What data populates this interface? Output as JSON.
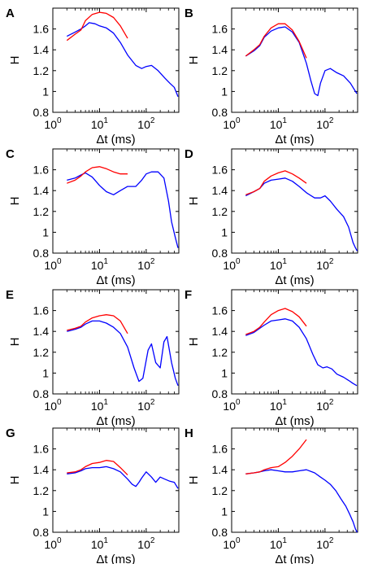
{
  "figure": {
    "panel_count": 8
  },
  "chart_data": [
    {
      "type": "line",
      "panel_label": "A",
      "xlabel": "Δt (ms)",
      "ylabel": "H",
      "xscale": "log",
      "xlim": [
        1,
        500
      ],
      "ylim": [
        0.8,
        1.8
      ],
      "xticks": [
        1,
        10,
        100
      ],
      "xtick_labels": [
        "10^0",
        "10^1",
        "10^2"
      ],
      "yticks": [
        0.8,
        1,
        1.2,
        1.4,
        1.6
      ],
      "ytick_labels": [
        "0.8",
        "1",
        "1.2",
        "1.4",
        "1.6"
      ],
      "grid": false,
      "series": [
        {
          "color": "#ff0000",
          "x": [
            2,
            3,
            4,
            5,
            7,
            10,
            14,
            20,
            28,
            40
          ],
          "y": [
            1.49,
            1.55,
            1.59,
            1.68,
            1.74,
            1.76,
            1.75,
            1.71,
            1.63,
            1.51
          ]
        },
        {
          "color": "#0000ff",
          "x": [
            2,
            3,
            4,
            5,
            6,
            8,
            10,
            14,
            20,
            28,
            40,
            60,
            80,
            100,
            130,
            180,
            250,
            320,
            400,
            480
          ],
          "y": [
            1.53,
            1.57,
            1.6,
            1.63,
            1.66,
            1.65,
            1.63,
            1.61,
            1.56,
            1.47,
            1.35,
            1.25,
            1.22,
            1.24,
            1.25,
            1.2,
            1.13,
            1.08,
            1.04,
            0.95
          ]
        }
      ]
    },
    {
      "type": "line",
      "panel_label": "B",
      "xlabel": "Δt (ms)",
      "ylabel": "H",
      "xscale": "log",
      "xlim": [
        1,
        500
      ],
      "ylim": [
        0.8,
        1.8
      ],
      "xticks": [
        1,
        10,
        100
      ],
      "xtick_labels": [
        "10^0",
        "10^1",
        "10^2"
      ],
      "yticks": [
        0.8,
        1,
        1.2,
        1.4,
        1.6
      ],
      "ytick_labels": [
        "0.8",
        "1",
        "1.2",
        "1.4",
        "1.6"
      ],
      "grid": false,
      "series": [
        {
          "color": "#ff0000",
          "x": [
            2,
            3,
            4,
            5,
            7,
            10,
            14,
            20,
            28,
            40
          ],
          "y": [
            1.34,
            1.4,
            1.45,
            1.53,
            1.61,
            1.65,
            1.65,
            1.59,
            1.48,
            1.32
          ]
        },
        {
          "color": "#0000ff",
          "x": [
            2,
            3,
            4,
            5,
            7,
            10,
            14,
            20,
            28,
            40,
            50,
            60,
            70,
            80,
            100,
            130,
            180,
            250,
            350,
            480
          ],
          "y": [
            1.34,
            1.39,
            1.44,
            1.52,
            1.58,
            1.61,
            1.62,
            1.57,
            1.47,
            1.27,
            1.1,
            0.98,
            0.96,
            1.08,
            1.2,
            1.22,
            1.18,
            1.15,
            1.08,
            0.98
          ]
        }
      ]
    },
    {
      "type": "line",
      "panel_label": "C",
      "xlabel": "Δt (ms)",
      "ylabel": "H",
      "xscale": "log",
      "xlim": [
        1,
        500
      ],
      "ylim": [
        0.8,
        1.8
      ],
      "xticks": [
        1,
        10,
        100
      ],
      "xtick_labels": [
        "10^0",
        "10^1",
        "10^2"
      ],
      "yticks": [
        0.8,
        1,
        1.2,
        1.4,
        1.6
      ],
      "ytick_labels": [
        "0.8",
        "1",
        "1.2",
        "1.4",
        "1.6"
      ],
      "grid": false,
      "series": [
        {
          "color": "#ff0000",
          "x": [
            2,
            3,
            4,
            5,
            7,
            10,
            14,
            20,
            28,
            40
          ],
          "y": [
            1.47,
            1.5,
            1.54,
            1.58,
            1.62,
            1.63,
            1.61,
            1.58,
            1.56,
            1.56
          ]
        },
        {
          "color": "#0000ff",
          "x": [
            2,
            3,
            4,
            5,
            7,
            10,
            14,
            20,
            28,
            40,
            60,
            80,
            100,
            130,
            180,
            240,
            300,
            350,
            420,
            480
          ],
          "y": [
            1.5,
            1.52,
            1.55,
            1.57,
            1.53,
            1.45,
            1.39,
            1.36,
            1.4,
            1.44,
            1.44,
            1.5,
            1.56,
            1.58,
            1.58,
            1.52,
            1.3,
            1.1,
            0.95,
            0.85
          ]
        }
      ]
    },
    {
      "type": "line",
      "panel_label": "D",
      "xlabel": "Δt (ms)",
      "ylabel": "H",
      "xscale": "log",
      "xlim": [
        1,
        500
      ],
      "ylim": [
        0.8,
        1.8
      ],
      "xticks": [
        1,
        10,
        100
      ],
      "xtick_labels": [
        "10^0",
        "10^1",
        "10^2"
      ],
      "yticks": [
        0.8,
        1,
        1.2,
        1.4,
        1.6
      ],
      "ytick_labels": [
        "0.8",
        "1",
        "1.2",
        "1.4",
        "1.6"
      ],
      "grid": false,
      "series": [
        {
          "color": "#ff0000",
          "x": [
            2,
            3,
            4,
            5,
            7,
            10,
            14,
            20,
            28,
            40
          ],
          "y": [
            1.36,
            1.39,
            1.42,
            1.49,
            1.54,
            1.57,
            1.59,
            1.56,
            1.52,
            1.47
          ]
        },
        {
          "color": "#0000ff",
          "x": [
            2,
            3,
            4,
            5,
            7,
            10,
            14,
            20,
            28,
            40,
            60,
            80,
            100,
            130,
            180,
            250,
            320,
            400,
            450,
            490
          ],
          "y": [
            1.35,
            1.39,
            1.42,
            1.47,
            1.5,
            1.51,
            1.52,
            1.49,
            1.44,
            1.38,
            1.33,
            1.33,
            1.35,
            1.3,
            1.22,
            1.15,
            1.05,
            0.9,
            0.85,
            0.82
          ]
        }
      ]
    },
    {
      "type": "line",
      "panel_label": "E",
      "xlabel": "Δt (ms)",
      "ylabel": "H",
      "xscale": "log",
      "xlim": [
        1,
        500
      ],
      "ylim": [
        0.8,
        1.8
      ],
      "xticks": [
        1,
        10,
        100
      ],
      "xtick_labels": [
        "10^0",
        "10^1",
        "10^2"
      ],
      "yticks": [
        0.8,
        1,
        1.2,
        1.4,
        1.6
      ],
      "ytick_labels": [
        "0.8",
        "1",
        "1.2",
        "1.4",
        "1.6"
      ],
      "grid": false,
      "series": [
        {
          "color": "#ff0000",
          "x": [
            2,
            3,
            4,
            5,
            7,
            10,
            14,
            20,
            28,
            40
          ],
          "y": [
            1.41,
            1.43,
            1.45,
            1.49,
            1.53,
            1.55,
            1.56,
            1.55,
            1.5,
            1.38
          ]
        },
        {
          "color": "#0000ff",
          "x": [
            2,
            3,
            4,
            5,
            7,
            10,
            14,
            20,
            28,
            40,
            55,
            70,
            85,
            110,
            130,
            160,
            200,
            240,
            280,
            350,
            420,
            480
          ],
          "y": [
            1.4,
            1.42,
            1.44,
            1.47,
            1.5,
            1.5,
            1.48,
            1.44,
            1.38,
            1.25,
            1.05,
            0.92,
            0.95,
            1.22,
            1.28,
            1.1,
            1.05,
            1.3,
            1.35,
            1.1,
            0.95,
            0.88
          ]
        }
      ]
    },
    {
      "type": "line",
      "panel_label": "F",
      "xlabel": "Δt (ms)",
      "ylabel": "H",
      "xscale": "log",
      "xlim": [
        1,
        500
      ],
      "ylim": [
        0.8,
        1.8
      ],
      "xticks": [
        1,
        10,
        100
      ],
      "xtick_labels": [
        "10^0",
        "10^1",
        "10^2"
      ],
      "yticks": [
        0.8,
        1,
        1.2,
        1.4,
        1.6
      ],
      "ytick_labels": [
        "0.8",
        "1",
        "1.2",
        "1.4",
        "1.6"
      ],
      "grid": false,
      "series": [
        {
          "color": "#ff0000",
          "x": [
            2,
            3,
            4,
            5,
            7,
            10,
            14,
            20,
            28,
            40
          ],
          "y": [
            1.37,
            1.4,
            1.44,
            1.49,
            1.56,
            1.6,
            1.62,
            1.59,
            1.54,
            1.45
          ]
        },
        {
          "color": "#0000ff",
          "x": [
            2,
            3,
            4,
            5,
            7,
            10,
            14,
            20,
            28,
            40,
            55,
            70,
            90,
            110,
            140,
            180,
            250,
            320,
            400,
            480
          ],
          "y": [
            1.36,
            1.39,
            1.43,
            1.46,
            1.5,
            1.51,
            1.52,
            1.5,
            1.44,
            1.33,
            1.18,
            1.08,
            1.05,
            1.06,
            1.04,
            0.99,
            0.96,
            0.93,
            0.9,
            0.88
          ]
        }
      ]
    },
    {
      "type": "line",
      "panel_label": "G",
      "xlabel": "Δt (ms)",
      "ylabel": "H",
      "xscale": "log",
      "xlim": [
        1,
        500
      ],
      "ylim": [
        0.8,
        1.8
      ],
      "xticks": [
        1,
        10,
        100
      ],
      "xtick_labels": [
        "10^0",
        "10^1",
        "10^2"
      ],
      "yticks": [
        0.8,
        1,
        1.2,
        1.4,
        1.6
      ],
      "ytick_labels": [
        "0.8",
        "1",
        "1.2",
        "1.4",
        "1.6"
      ],
      "grid": false,
      "series": [
        {
          "color": "#ff0000",
          "x": [
            2,
            3,
            4,
            5,
            7,
            10,
            14,
            20,
            28,
            40
          ],
          "y": [
            1.37,
            1.38,
            1.4,
            1.43,
            1.46,
            1.47,
            1.49,
            1.48,
            1.42,
            1.35
          ]
        },
        {
          "color": "#0000ff",
          "x": [
            2,
            3,
            4,
            5,
            7,
            10,
            14,
            20,
            28,
            40,
            50,
            60,
            70,
            80,
            100,
            130,
            160,
            200,
            250,
            320,
            400,
            480
          ],
          "y": [
            1.36,
            1.37,
            1.39,
            1.41,
            1.42,
            1.42,
            1.43,
            1.41,
            1.38,
            1.31,
            1.26,
            1.24,
            1.28,
            1.32,
            1.38,
            1.33,
            1.28,
            1.33,
            1.31,
            1.29,
            1.28,
            1.22
          ]
        }
      ]
    },
    {
      "type": "line",
      "panel_label": "H",
      "xlabel": "Δt (ms)",
      "ylabel": "H",
      "xscale": "log",
      "xlim": [
        1,
        500
      ],
      "ylim": [
        0.8,
        1.8
      ],
      "xticks": [
        1,
        10,
        100
      ],
      "xtick_labels": [
        "10^0",
        "10^1",
        "10^2"
      ],
      "yticks": [
        0.8,
        1,
        1.2,
        1.4,
        1.6
      ],
      "ytick_labels": [
        "0.8",
        "1",
        "1.2",
        "1.4",
        "1.6"
      ],
      "grid": false,
      "series": [
        {
          "color": "#ff0000",
          "x": [
            2,
            3,
            4,
            5,
            7,
            10,
            14,
            20,
            28,
            40
          ],
          "y": [
            1.36,
            1.37,
            1.38,
            1.4,
            1.42,
            1.43,
            1.47,
            1.53,
            1.6,
            1.69
          ]
        },
        {
          "color": "#0000ff",
          "x": [
            2,
            3,
            4,
            5,
            7,
            10,
            14,
            20,
            28,
            40,
            60,
            80,
            100,
            130,
            170,
            220,
            280,
            340,
            400,
            450,
            490
          ],
          "y": [
            1.36,
            1.37,
            1.38,
            1.39,
            1.4,
            1.39,
            1.38,
            1.38,
            1.39,
            1.4,
            1.37,
            1.33,
            1.3,
            1.26,
            1.2,
            1.12,
            1.05,
            0.97,
            0.9,
            0.83,
            0.8
          ]
        }
      ]
    }
  ]
}
